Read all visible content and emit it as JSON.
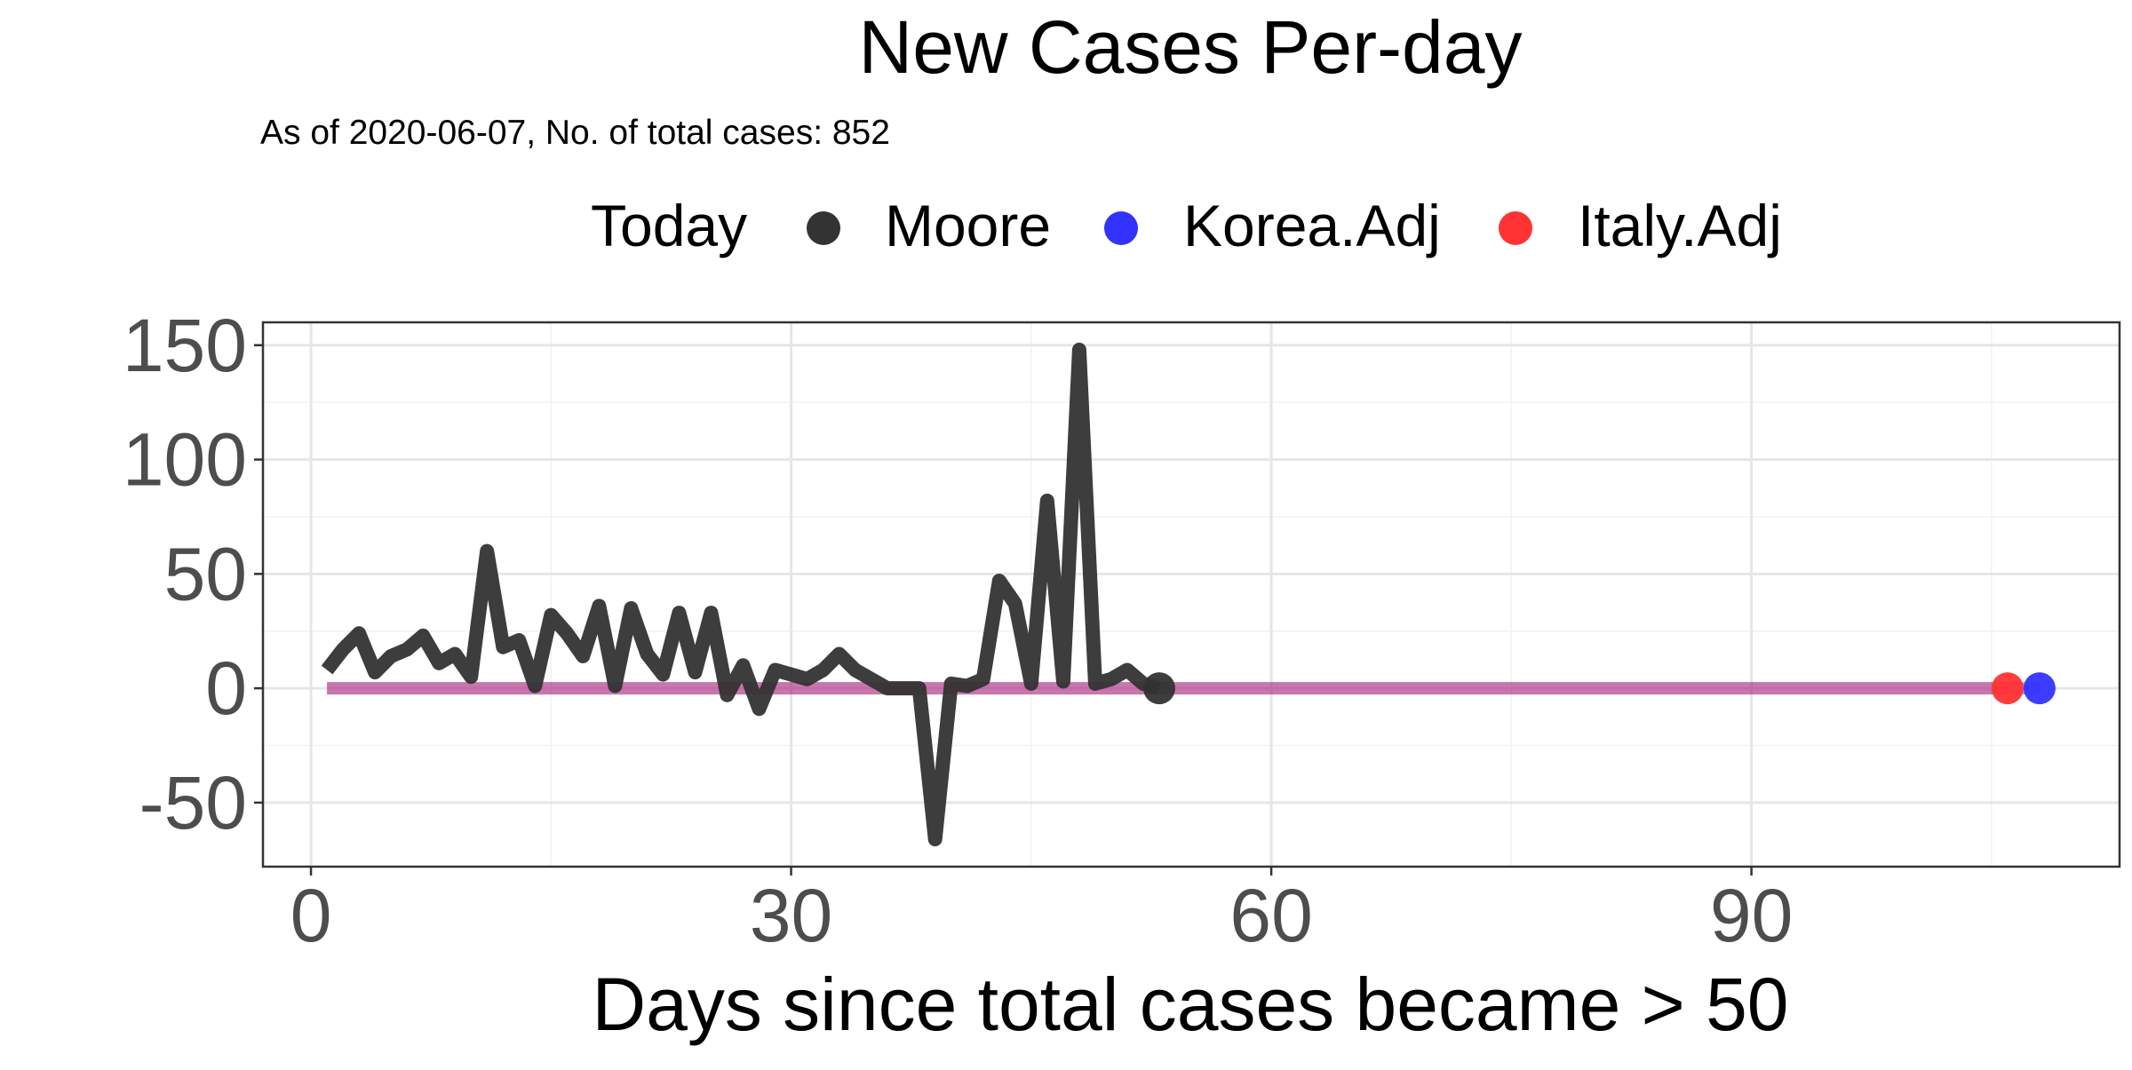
{
  "chart_data": {
    "type": "line",
    "title": "New Cases Per-day",
    "subtitle": "As of 2020-06-07, No. of total cases: 852",
    "xlabel": "Days since total cases became > 50",
    "ylabel": "",
    "xlim": [
      -3,
      113
    ],
    "ylim": [
      -78,
      160
    ],
    "x_ticks": [
      0,
      30,
      60,
      90
    ],
    "y_ticks": [
      -50,
      0,
      50,
      100,
      150
    ],
    "x_minor": [
      15,
      45,
      75,
      105
    ],
    "y_minor": [
      -25,
      25,
      75,
      125
    ],
    "grid": true,
    "legend": {
      "position": "top",
      "title": "Today",
      "entries": [
        {
          "name": "Moore",
          "color": "#333333"
        },
        {
          "name": "Korea.Adj",
          "color": "#3333ff"
        },
        {
          "name": "Italy.Adj",
          "color": "#ff3333"
        }
      ]
    },
    "series": [
      {
        "name": "Moore",
        "color": "#333333",
        "x": [
          1,
          2,
          3,
          4,
          5,
          6,
          7,
          8,
          9,
          10,
          11,
          12,
          13,
          14,
          15,
          16,
          17,
          18,
          19,
          20,
          21,
          22,
          23,
          24,
          25,
          26,
          27,
          28,
          29,
          30,
          31,
          32,
          33,
          34,
          35,
          36,
          37,
          38,
          39,
          40,
          41,
          42,
          43,
          44,
          45,
          46,
          47,
          48,
          49,
          50,
          51,
          52,
          53
        ],
        "y": [
          8,
          17,
          24,
          7,
          14,
          17,
          23,
          11,
          15,
          5,
          60,
          18,
          21,
          1,
          32,
          24,
          14,
          36,
          1,
          35,
          15,
          6,
          33,
          7,
          33,
          -3,
          10,
          -9,
          8,
          6,
          4,
          8,
          15,
          8,
          4,
          0,
          0,
          0,
          -66,
          2,
          1,
          4,
          47,
          37,
          2,
          82,
          3,
          148,
          2,
          4,
          8,
          2,
          0
        ]
      },
      {
        "name": "Korea.Adj",
        "color": "#3333ff",
        "x": [
          1,
          10,
          20,
          30,
          40,
          50,
          60,
          70,
          80,
          90,
          100,
          108
        ],
        "y": [
          0,
          0,
          0,
          0,
          0,
          0,
          0,
          0,
          0,
          0,
          0,
          0
        ]
      },
      {
        "name": "Italy.Adj",
        "color": "#ff3333",
        "x": [
          1,
          10,
          20,
          30,
          40,
          50,
          60,
          70,
          80,
          90,
          100,
          106
        ],
        "y": [
          0,
          0,
          0,
          0,
          0,
          0,
          0,
          0,
          0,
          0,
          0,
          0
        ]
      }
    ],
    "today_points": [
      {
        "name": "Moore",
        "x": 53,
        "y": 0,
        "color": "#333333"
      },
      {
        "name": "Italy.Adj",
        "x": 106,
        "y": 0,
        "color": "#ff3333"
      },
      {
        "name": "Korea.Adj",
        "x": 108,
        "y": 0,
        "color": "#3333ff"
      }
    ]
  }
}
